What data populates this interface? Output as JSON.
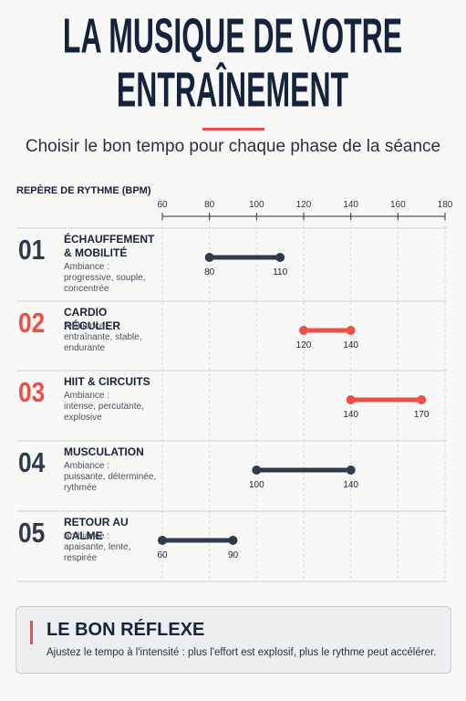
{
  "chart_data": {
    "type": "range",
    "title": "LA MUSIQUE DE VOTRE ENTRAÎNEMENT",
    "subtitle": "Choisir le bon tempo pour chaque phase de la séance",
    "x_label": "REPÈRE DE RYTHME (BPM)",
    "xlim": [
      60,
      180
    ],
    "xticks": [
      60,
      80,
      100,
      120,
      140,
      160,
      180
    ],
    "grid": true,
    "phases": [
      {
        "number": "01",
        "name": "ÉCHAUFFEMENT & MOBILITÉ",
        "mood_label": "Ambiance :",
        "mood": "progressive, souple, concentrée",
        "low": 80,
        "high": 110,
        "color": "#2f3a4a"
      },
      {
        "number": "02",
        "name": "CARDIO RÉGULIER",
        "mood_label": "Ambiance :",
        "mood": "entraînante, stable, endurante",
        "low": 120,
        "high": 140,
        "color": "#e8504a"
      },
      {
        "number": "03",
        "name": "HIIT & CIRCUITS",
        "mood_label": "Ambiance :",
        "mood": "intense, percutante, explosive",
        "low": 140,
        "high": 170,
        "color": "#e8504a"
      },
      {
        "number": "04",
        "name": "MUSCULATION",
        "mood_label": "Ambiance :",
        "mood": "puissante, déterminée, rythmée",
        "low": 100,
        "high": 140,
        "color": "#2f3a4a"
      },
      {
        "number": "05",
        "name": "RETOUR AU CALME",
        "mood_label": "Ambiance :",
        "mood": "apaisante, lente, respirée",
        "low": 60,
        "high": 90,
        "color": "#2f3a4a"
      }
    ],
    "tip": {
      "title": "LE BON RÉFLEXE",
      "text": "Ajustez le tempo à l'intensité : plus l'effort est explosif, plus le rythme peut accélérer."
    }
  }
}
